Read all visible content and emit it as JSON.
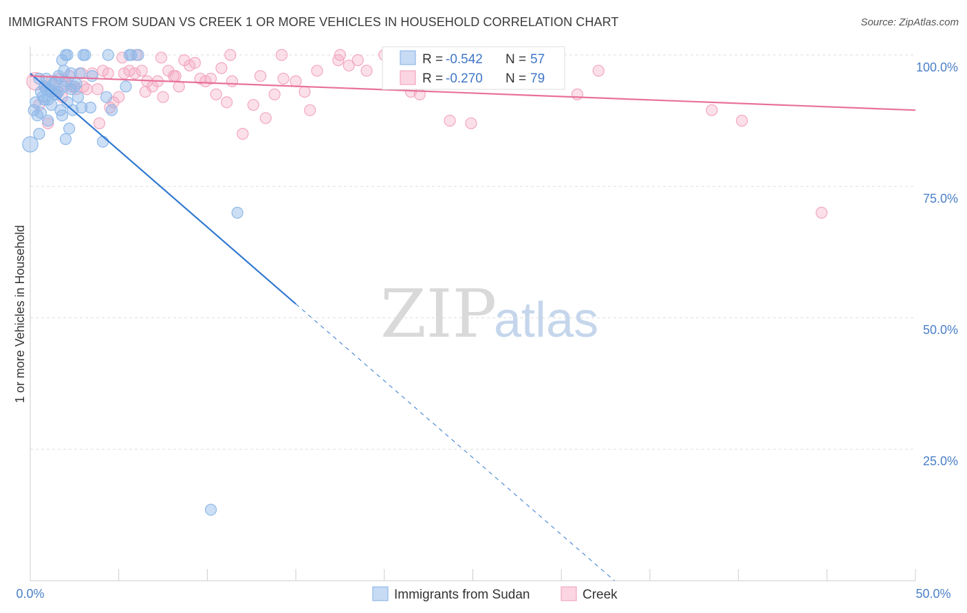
{
  "title": "IMMIGRANTS FROM SUDAN VS CREEK 1 OR MORE VEHICLES IN HOUSEHOLD CORRELATION CHART",
  "source": "Source: ZipAtlas.com",
  "watermark": {
    "zip": "ZIP",
    "atlas": "atlas"
  },
  "colors": {
    "blue": "#8fb8e8",
    "blue_line": "#2f77d0",
    "pink": "#f3a6bf",
    "pink_line": "#e8719a",
    "tick": "#4a7fc7"
  },
  "legend": {
    "row1": {
      "r_label": "R = ",
      "r_value": "-0.542",
      "n_label": "N = ",
      "n_value": "57"
    },
    "row2": {
      "r_label": "R = ",
      "r_value": "-0.270",
      "n_label": "N = ",
      "n_value": "79"
    }
  },
  "bottom_legend": [
    "Immigrants from Sudan",
    "Creek"
  ],
  "chart_data": {
    "type": "scatter",
    "title": "IMMIGRANTS FROM SUDAN VS CREEK 1 OR MORE VEHICLES IN HOUSEHOLD CORRELATION CHART",
    "xlabel": "",
    "ylabel": "1 or more Vehicles in Household",
    "xlim": [
      0,
      50
    ],
    "ylim": [
      0,
      100
    ],
    "x_tick_labels": [
      "0.0%",
      "50.0%"
    ],
    "y_tick_labels": [
      "100.0%",
      "75.0%",
      "50.0%",
      "25.0%"
    ],
    "y_tick_values": [
      100,
      75,
      50,
      25
    ],
    "series": [
      {
        "name": "Immigrants from Sudan",
        "R": -0.542,
        "N": 57,
        "trend": {
          "x0": 0.0,
          "y0": 96.5,
          "x_solid_end": 15.0,
          "x_dash_end": 33.0
        },
        "points": [
          [
            0.0,
            83.0,
            1.4
          ],
          [
            0.2,
            89.5,
            1.0
          ],
          [
            0.3,
            91.0,
            1.0
          ],
          [
            0.4,
            88.5,
            1.0
          ],
          [
            0.5,
            85.0,
            1.0
          ],
          [
            0.6,
            93.0,
            1.0
          ],
          [
            0.7,
            92.0,
            1.0
          ],
          [
            0.8,
            94.0,
            1.0
          ],
          [
            0.9,
            95.5,
            1.0
          ],
          [
            1.0,
            91.5,
            1.0
          ],
          [
            1.1,
            93.5,
            1.0
          ],
          [
            1.2,
            90.5,
            1.0
          ],
          [
            1.3,
            94.5,
            1.0
          ],
          [
            1.4,
            95.0,
            1.0
          ],
          [
            1.5,
            92.5,
            1.0
          ],
          [
            1.6,
            93.0,
            1.0
          ],
          [
            1.7,
            89.5,
            1.0
          ],
          [
            1.8,
            88.5,
            1.0
          ],
          [
            1.9,
            94.0,
            1.0
          ],
          [
            2.0,
            95.0,
            1.0
          ],
          [
            2.1,
            91.0,
            1.0
          ],
          [
            2.2,
            86.0,
            1.0
          ],
          [
            2.3,
            93.5,
            1.0
          ],
          [
            2.4,
            89.5,
            1.0
          ],
          [
            2.5,
            94.0,
            1.0
          ],
          [
            1.8,
            99.0,
            1.0
          ],
          [
            1.9,
            97.0,
            1.0
          ],
          [
            2.0,
            100.0,
            1.0
          ],
          [
            2.1,
            100.0,
            1.0
          ],
          [
            3.0,
            100.0,
            1.0
          ],
          [
            3.1,
            100.0,
            1.0
          ],
          [
            4.4,
            100.0,
            1.0
          ],
          [
            5.6,
            100.0,
            1.0
          ],
          [
            5.7,
            100.0,
            1.0
          ],
          [
            6.1,
            100.0,
            1.0
          ],
          [
            2.8,
            96.5,
            1.0
          ],
          [
            3.5,
            96.0,
            1.0
          ],
          [
            2.9,
            90.0,
            1.0
          ],
          [
            3.4,
            90.0,
            1.0
          ],
          [
            4.1,
            83.5,
            1.0
          ],
          [
            4.6,
            89.5,
            1.0
          ],
          [
            5.4,
            94.0,
            1.0
          ],
          [
            2.6,
            94.5,
            1.0
          ],
          [
            1.6,
            96.0,
            1.0
          ],
          [
            1.2,
            93.0,
            1.0
          ],
          [
            0.8,
            91.5,
            1.0
          ],
          [
            0.6,
            89.0,
            1.0
          ],
          [
            0.5,
            95.5,
            1.0
          ],
          [
            2.0,
            84.0,
            1.0
          ],
          [
            1.0,
            87.5,
            1.0
          ],
          [
            2.3,
            96.5,
            1.0
          ],
          [
            2.7,
            92.0,
            1.0
          ],
          [
            4.3,
            92.0,
            1.0
          ],
          [
            11.7,
            70.0,
            1.0
          ],
          [
            10.2,
            13.5,
            1.0
          ],
          [
            1.4,
            92.5,
            1.0
          ],
          [
            0.9,
            93.5,
            1.0
          ]
        ]
      },
      {
        "name": "Creek",
        "R": -0.27,
        "N": 79,
        "trend": {
          "x0": 0.0,
          "y0": 96.0,
          "x1": 50.0,
          "y1": 89.5
        },
        "points": [
          [
            0.3,
            95.0,
            1.6
          ],
          [
            0.5,
            90.5,
            1.0
          ],
          [
            0.8,
            94.0,
            1.0
          ],
          [
            1.2,
            95.0,
            1.0
          ],
          [
            1.5,
            93.0,
            1.0
          ],
          [
            1.8,
            92.0,
            1.0
          ],
          [
            2.0,
            94.5,
            1.0
          ],
          [
            2.3,
            94.0,
            1.0
          ],
          [
            2.6,
            93.5,
            1.0
          ],
          [
            2.9,
            96.5,
            1.0
          ],
          [
            3.2,
            93.5,
            1.0
          ],
          [
            3.5,
            96.5,
            1.0
          ],
          [
            3.8,
            93.5,
            1.0
          ],
          [
            4.1,
            97.0,
            1.0
          ],
          [
            4.4,
            96.5,
            1.0
          ],
          [
            4.7,
            91.0,
            1.0
          ],
          [
            5.0,
            92.0,
            1.0
          ],
          [
            5.3,
            96.5,
            1.0
          ],
          [
            5.6,
            97.0,
            1.0
          ],
          [
            5.9,
            96.5,
            1.0
          ],
          [
            6.3,
            97.0,
            1.0
          ],
          [
            6.6,
            95.0,
            1.0
          ],
          [
            6.9,
            94.0,
            1.0
          ],
          [
            7.2,
            95.0,
            1.0
          ],
          [
            7.5,
            92.0,
            1.0
          ],
          [
            7.8,
            97.0,
            1.0
          ],
          [
            8.1,
            96.0,
            1.0
          ],
          [
            8.4,
            94.0,
            1.0
          ],
          [
            8.7,
            99.0,
            1.0
          ],
          [
            9.0,
            98.0,
            1.0
          ],
          [
            9.3,
            98.5,
            1.0
          ],
          [
            9.6,
            95.5,
            1.0
          ],
          [
            9.9,
            95.0,
            1.0
          ],
          [
            10.2,
            95.5,
            1.0
          ],
          [
            10.5,
            92.5,
            1.0
          ],
          [
            10.8,
            97.5,
            1.0
          ],
          [
            11.1,
            91.0,
            1.0
          ],
          [
            11.4,
            95.0,
            1.0
          ],
          [
            12.0,
            85.0,
            1.0
          ],
          [
            12.6,
            90.5,
            1.0
          ],
          [
            13.0,
            96.0,
            1.0
          ],
          [
            13.3,
            88.0,
            1.0
          ],
          [
            13.8,
            92.5,
            1.0
          ],
          [
            14.3,
            95.5,
            1.0
          ],
          [
            15.0,
            95.0,
            1.0
          ],
          [
            15.5,
            93.0,
            1.0
          ],
          [
            15.8,
            89.5,
            1.0
          ],
          [
            16.2,
            97.0,
            1.0
          ],
          [
            17.4,
            99.0,
            1.0
          ],
          [
            18.0,
            98.0,
            1.0
          ],
          [
            19.0,
            97.0,
            1.0
          ],
          [
            20.5,
            94.5,
            1.0
          ],
          [
            21.5,
            93.0,
            1.0
          ],
          [
            22.0,
            92.5,
            1.0
          ],
          [
            23.7,
            87.5,
            1.0
          ],
          [
            24.9,
            87.0,
            1.0
          ],
          [
            30.9,
            92.5,
            1.0
          ],
          [
            32.1,
            97.0,
            1.0
          ],
          [
            38.5,
            89.5,
            1.0
          ],
          [
            40.2,
            87.5,
            1.0
          ],
          [
            44.7,
            70.0,
            1.0
          ],
          [
            1.0,
            87.0,
            1.0
          ],
          [
            2.2,
            96.0,
            1.0
          ],
          [
            3.9,
            87.0,
            1.0
          ],
          [
            4.5,
            90.0,
            1.0
          ],
          [
            5.2,
            99.5,
            1.0
          ],
          [
            6.0,
            100.0,
            1.0
          ],
          [
            7.4,
            99.5,
            1.0
          ],
          [
            11.3,
            100.0,
            1.0
          ],
          [
            14.2,
            100.0,
            1.0
          ],
          [
            17.5,
            100.0,
            1.0
          ],
          [
            20.0,
            100.0,
            1.0
          ],
          [
            21.2,
            99.5,
            1.0
          ],
          [
            22.3,
            99.0,
            1.0
          ],
          [
            18.5,
            99.0,
            1.0
          ],
          [
            8.2,
            96.0,
            1.0
          ],
          [
            6.5,
            93.0,
            1.0
          ],
          [
            3.0,
            94.0,
            1.0
          ],
          [
            1.6,
            95.5,
            1.0
          ]
        ]
      }
    ]
  }
}
